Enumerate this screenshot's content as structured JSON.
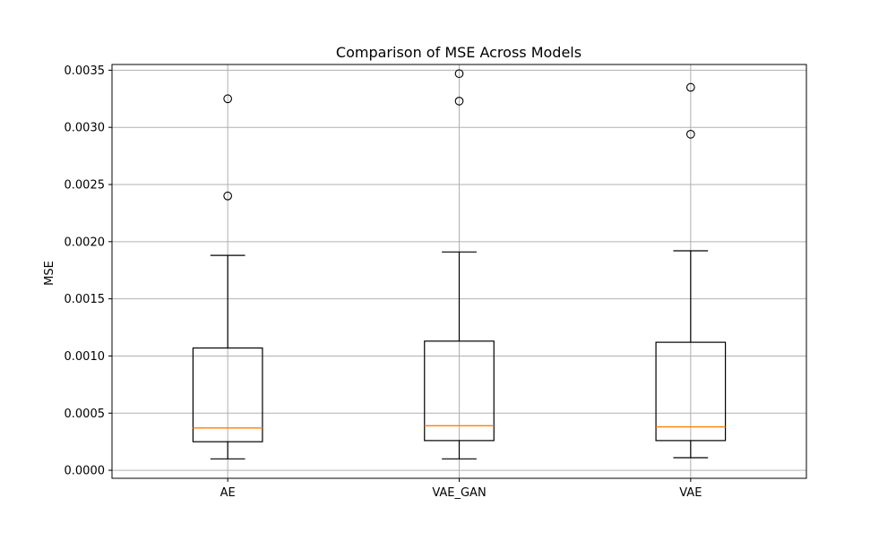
{
  "chart_data": {
    "type": "box",
    "title": "Comparison of MSE Across Models",
    "xlabel": "",
    "ylabel": "MSE",
    "ylim": [
      -7e-05,
      0.00355
    ],
    "grid": true,
    "categories": [
      "AE",
      "VAE_GAN",
      "VAE"
    ],
    "y_ticks": [
      0.0,
      0.0005,
      0.001,
      0.0015,
      0.002,
      0.0025,
      0.003,
      0.0035
    ],
    "y_tick_labels": [
      "0.0000",
      "0.0005",
      "0.0010",
      "0.0015",
      "0.0020",
      "0.0025",
      "0.0030",
      "0.0035"
    ],
    "boxes": [
      {
        "category": "AE",
        "whisker_low": 0.0001,
        "q1": 0.00025,
        "median": 0.00037,
        "q3": 0.00107,
        "whisker_high": 0.00188,
        "outliers": [
          0.0024,
          0.00325
        ]
      },
      {
        "category": "VAE_GAN",
        "whisker_low": 0.0001,
        "q1": 0.00026,
        "median": 0.00039,
        "q3": 0.00113,
        "whisker_high": 0.00191,
        "outliers": [
          0.00323,
          0.00347
        ]
      },
      {
        "category": "VAE",
        "whisker_low": 0.00011,
        "q1": 0.00026,
        "median": 0.00038,
        "q3": 0.00112,
        "whisker_high": 0.00192,
        "outliers": [
          0.00294,
          0.00335
        ]
      }
    ],
    "colors": {
      "box": "#000000",
      "median": "#ff7f0e",
      "grid": "#b0b0b0"
    }
  }
}
